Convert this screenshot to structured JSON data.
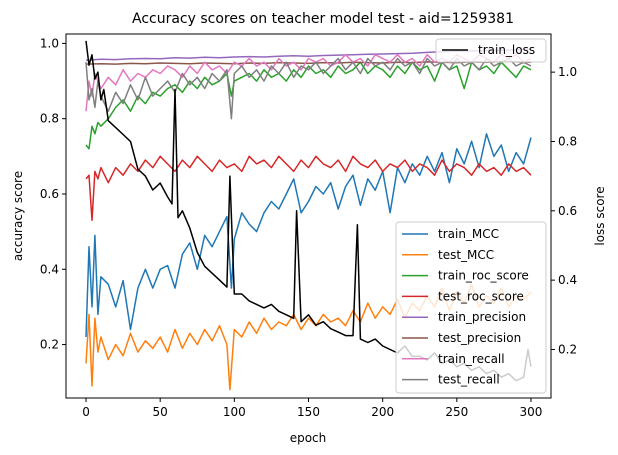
{
  "chart_data": {
    "type": "line",
    "title": "Accuracy scores on teacher model test - aid=1259381",
    "xlabel": "epoch",
    "ylabel": "accuracy score",
    "y2label": "loss score",
    "xlim": [
      -13.5,
      313.5
    ],
    "ylim": [
      0.058,
      1.025
    ],
    "y2lim": [
      0.06,
      1.11
    ],
    "xticks": [
      0,
      50,
      100,
      150,
      200,
      250,
      300
    ],
    "yticks": [
      0.2,
      0.4,
      0.6,
      0.8,
      1.0
    ],
    "y2ticks": [
      0.2,
      0.4,
      0.6,
      0.8,
      1.0
    ],
    "grid": false,
    "legend_left": "lower right",
    "legend_right": "upper right",
    "series": [
      {
        "name": "train_MCC",
        "color": "#1f77b4",
        "axis": "left",
        "x": [
          0,
          2,
          4,
          6,
          8,
          10,
          15,
          20,
          25,
          30,
          35,
          40,
          45,
          50,
          55,
          60,
          65,
          70,
          75,
          80,
          85,
          90,
          95,
          98,
          100,
          105,
          110,
          115,
          120,
          125,
          130,
          135,
          140,
          145,
          150,
          155,
          160,
          165,
          170,
          175,
          180,
          185,
          190,
          195,
          200,
          205,
          210,
          215,
          220,
          225,
          230,
          235,
          240,
          245,
          250,
          255,
          260,
          265,
          270,
          275,
          280,
          285,
          290,
          295,
          300
        ],
        "y": [
          0.22,
          0.46,
          0.3,
          0.49,
          0.28,
          0.38,
          0.36,
          0.3,
          0.37,
          0.24,
          0.35,
          0.4,
          0.35,
          0.4,
          0.41,
          0.35,
          0.44,
          0.47,
          0.4,
          0.49,
          0.46,
          0.5,
          0.54,
          0.35,
          0.48,
          0.55,
          0.52,
          0.5,
          0.55,
          0.58,
          0.56,
          0.6,
          0.64,
          0.55,
          0.58,
          0.62,
          0.6,
          0.63,
          0.56,
          0.62,
          0.65,
          0.57,
          0.64,
          0.61,
          0.66,
          0.55,
          0.67,
          0.63,
          0.68,
          0.65,
          0.7,
          0.66,
          0.71,
          0.63,
          0.72,
          0.68,
          0.74,
          0.67,
          0.76,
          0.7,
          0.73,
          0.66,
          0.71,
          0.68,
          0.75
        ]
      },
      {
        "name": "test_MCC",
        "color": "#ff7f0e",
        "axis": "left",
        "x": [
          0,
          2,
          4,
          6,
          8,
          10,
          15,
          20,
          25,
          30,
          35,
          40,
          45,
          50,
          55,
          60,
          65,
          70,
          75,
          80,
          85,
          90,
          95,
          97,
          100,
          105,
          110,
          115,
          120,
          125,
          130,
          135,
          140,
          145,
          150,
          155,
          160,
          165,
          170,
          175,
          180,
          185,
          190,
          195,
          200,
          205,
          210,
          215,
          220,
          225,
          230,
          235,
          240,
          245,
          250,
          255,
          260,
          265,
          270,
          275,
          280,
          285,
          290,
          295,
          300
        ],
        "y": [
          0.15,
          0.28,
          0.09,
          0.27,
          0.18,
          0.22,
          0.16,
          0.2,
          0.17,
          0.23,
          0.18,
          0.21,
          0.19,
          0.22,
          0.18,
          0.24,
          0.19,
          0.23,
          0.2,
          0.24,
          0.21,
          0.25,
          0.2,
          0.08,
          0.24,
          0.22,
          0.26,
          0.23,
          0.27,
          0.24,
          0.26,
          0.25,
          0.28,
          0.24,
          0.27,
          0.25,
          0.28,
          0.26,
          0.27,
          0.25,
          0.29,
          0.26,
          0.31,
          0.27,
          0.3,
          0.28,
          0.32,
          0.27,
          0.31,
          0.29,
          0.33,
          0.3,
          0.35,
          0.29,
          0.34,
          0.31,
          0.36,
          0.3,
          0.33,
          0.31,
          0.35,
          0.3,
          0.33,
          0.32,
          0.34
        ]
      },
      {
        "name": "train_roc_score",
        "color": "#2ca02c",
        "axis": "left",
        "x": [
          0,
          2,
          4,
          6,
          8,
          10,
          15,
          20,
          25,
          30,
          35,
          40,
          45,
          50,
          55,
          60,
          65,
          70,
          75,
          80,
          85,
          90,
          95,
          98,
          100,
          105,
          110,
          115,
          120,
          125,
          130,
          135,
          140,
          145,
          150,
          155,
          160,
          165,
          170,
          175,
          180,
          185,
          190,
          195,
          200,
          205,
          210,
          215,
          220,
          225,
          230,
          235,
          240,
          245,
          250,
          255,
          260,
          265,
          270,
          275,
          280,
          285,
          290,
          295,
          300
        ],
        "y": [
          0.73,
          0.72,
          0.78,
          0.76,
          0.79,
          0.78,
          0.8,
          0.83,
          0.85,
          0.82,
          0.86,
          0.84,
          0.87,
          0.86,
          0.88,
          0.89,
          0.87,
          0.9,
          0.88,
          0.91,
          0.89,
          0.9,
          0.92,
          0.86,
          0.9,
          0.91,
          0.92,
          0.9,
          0.93,
          0.91,
          0.92,
          0.9,
          0.93,
          0.91,
          0.94,
          0.92,
          0.93,
          0.91,
          0.94,
          0.92,
          0.93,
          0.95,
          0.92,
          0.94,
          0.93,
          0.91,
          0.94,
          0.92,
          0.95,
          0.93,
          0.94,
          0.9,
          0.95,
          0.93,
          0.94,
          0.88,
          0.95,
          0.93,
          0.94,
          0.92,
          0.95,
          0.93,
          0.91,
          0.94,
          0.93
        ]
      },
      {
        "name": "test_roc_score",
        "color": "#d62728",
        "axis": "left",
        "x": [
          0,
          2,
          4,
          6,
          8,
          10,
          15,
          20,
          25,
          30,
          35,
          40,
          45,
          50,
          55,
          60,
          65,
          70,
          75,
          80,
          85,
          90,
          95,
          100,
          105,
          110,
          115,
          120,
          125,
          130,
          135,
          140,
          145,
          150,
          155,
          160,
          165,
          170,
          175,
          180,
          185,
          190,
          195,
          200,
          205,
          210,
          215,
          220,
          225,
          230,
          235,
          240,
          245,
          250,
          255,
          260,
          265,
          270,
          275,
          280,
          285,
          290,
          295,
          300
        ],
        "y": [
          0.64,
          0.65,
          0.53,
          0.66,
          0.64,
          0.67,
          0.63,
          0.67,
          0.65,
          0.68,
          0.66,
          0.69,
          0.67,
          0.7,
          0.68,
          0.66,
          0.69,
          0.67,
          0.7,
          0.68,
          0.66,
          0.69,
          0.67,
          0.68,
          0.66,
          0.7,
          0.68,
          0.69,
          0.67,
          0.7,
          0.68,
          0.66,
          0.69,
          0.67,
          0.7,
          0.68,
          0.67,
          0.69,
          0.66,
          0.7,
          0.68,
          0.67,
          0.69,
          0.66,
          0.68,
          0.67,
          0.69,
          0.66,
          0.68,
          0.67,
          0.65,
          0.69,
          0.66,
          0.68,
          0.67,
          0.65,
          0.68,
          0.66,
          0.67,
          0.65,
          0.68,
          0.66,
          0.67,
          0.65
        ]
      },
      {
        "name": "train_precision",
        "color": "#9467bd",
        "axis": "left",
        "x": [
          0,
          10,
          20,
          30,
          40,
          50,
          60,
          70,
          80,
          90,
          100,
          110,
          120,
          130,
          140,
          150,
          160,
          170,
          180,
          190,
          200,
          210,
          220,
          230,
          240,
          250,
          260,
          270,
          280,
          290,
          300
        ],
        "y": [
          0.955,
          0.958,
          0.957,
          0.959,
          0.96,
          0.959,
          0.962,
          0.961,
          0.963,
          0.962,
          0.964,
          0.965,
          0.964,
          0.966,
          0.967,
          0.966,
          0.968,
          0.969,
          0.97,
          0.971,
          0.972,
          0.973,
          0.974,
          0.976,
          0.978,
          0.979,
          0.98,
          0.981,
          0.982,
          0.983,
          0.984
        ]
      },
      {
        "name": "test_precision",
        "color": "#8c564b",
        "axis": "left",
        "x": [
          0,
          10,
          20,
          30,
          40,
          50,
          60,
          70,
          80,
          90,
          100,
          110,
          120,
          130,
          140,
          150,
          160,
          170,
          180,
          190,
          200,
          210,
          220,
          230,
          240,
          250,
          260,
          270,
          280,
          290,
          300
        ],
        "y": [
          0.945,
          0.946,
          0.945,
          0.947,
          0.946,
          0.948,
          0.947,
          0.946,
          0.948,
          0.947,
          0.946,
          0.948,
          0.947,
          0.949,
          0.948,
          0.947,
          0.949,
          0.948,
          0.95,
          0.949,
          0.948,
          0.95,
          0.949,
          0.951,
          0.95,
          0.949,
          0.951,
          0.95,
          0.952,
          0.951,
          0.95
        ]
      },
      {
        "name": "train_recall",
        "color": "#e377c2",
        "axis": "left",
        "x": [
          0,
          2,
          4,
          6,
          10,
          15,
          20,
          25,
          30,
          35,
          40,
          45,
          50,
          55,
          60,
          65,
          70,
          75,
          80,
          85,
          90,
          95,
          100,
          105,
          110,
          115,
          120,
          125,
          130,
          135,
          140,
          145,
          150,
          155,
          160,
          165,
          170,
          175,
          180,
          185,
          190,
          195,
          200,
          205,
          210,
          215,
          220,
          225,
          230,
          235,
          240,
          245,
          250,
          255,
          260,
          265,
          270,
          275,
          280,
          285,
          290,
          295,
          300
        ],
        "y": [
          0.82,
          0.9,
          0.86,
          0.92,
          0.88,
          0.91,
          0.89,
          0.93,
          0.9,
          0.92,
          0.91,
          0.93,
          0.92,
          0.94,
          0.93,
          0.91,
          0.94,
          0.92,
          0.95,
          0.93,
          0.94,
          0.92,
          0.95,
          0.94,
          0.96,
          0.94,
          0.95,
          0.93,
          0.96,
          0.94,
          0.95,
          0.93,
          0.96,
          0.95,
          0.96,
          0.94,
          0.95,
          0.97,
          0.95,
          0.96,
          0.94,
          0.97,
          0.96,
          0.95,
          0.97,
          0.95,
          0.96,
          0.94,
          0.97,
          0.95,
          0.96,
          0.95,
          0.97,
          0.96,
          0.95,
          0.97,
          0.96,
          0.95,
          0.97,
          0.96,
          0.97,
          0.95,
          0.96
        ]
      },
      {
        "name": "test_recall",
        "color": "#7f7f7f",
        "axis": "left",
        "x": [
          0,
          2,
          4,
          6,
          8,
          10,
          15,
          20,
          25,
          30,
          35,
          40,
          45,
          50,
          55,
          60,
          65,
          70,
          75,
          80,
          85,
          90,
          95,
          98,
          100,
          105,
          110,
          115,
          120,
          125,
          130,
          135,
          140,
          145,
          150,
          155,
          160,
          165,
          170,
          175,
          180,
          185,
          190,
          195,
          200,
          205,
          210,
          215,
          220,
          225,
          230,
          235,
          240,
          245,
          250,
          255,
          260,
          265,
          270,
          275,
          280,
          285,
          290,
          295,
          300
        ],
        "y": [
          0.95,
          0.85,
          0.88,
          0.83,
          0.9,
          0.86,
          0.82,
          0.87,
          0.84,
          0.89,
          0.85,
          0.91,
          0.86,
          0.88,
          0.9,
          0.87,
          0.92,
          0.89,
          0.91,
          0.88,
          0.92,
          0.9,
          0.93,
          0.8,
          0.92,
          0.94,
          0.91,
          0.93,
          0.9,
          0.94,
          0.92,
          0.95,
          0.91,
          0.94,
          0.93,
          0.95,
          0.92,
          0.94,
          0.96,
          0.93,
          0.95,
          0.92,
          0.96,
          0.94,
          0.95,
          0.93,
          0.96,
          0.94,
          0.95,
          0.92,
          0.96,
          0.94,
          0.95,
          0.93,
          0.96,
          0.94,
          0.95,
          0.93,
          0.96,
          0.94,
          0.95,
          0.96,
          0.94,
          0.95,
          0.94
        ]
      },
      {
        "name": "train_loss",
        "color": "#000000",
        "axis": "right",
        "x": [
          0,
          2,
          4,
          6,
          8,
          10,
          12,
          15,
          20,
          25,
          30,
          35,
          40,
          45,
          50,
          55,
          58,
          60,
          62,
          65,
          70,
          75,
          80,
          85,
          90,
          95,
          97,
          100,
          105,
          110,
          115,
          120,
          125,
          130,
          135,
          140,
          142,
          145,
          150,
          155,
          160,
          165,
          170,
          175,
          180,
          183,
          185,
          190,
          195,
          200,
          205,
          210,
          215,
          220,
          225,
          230,
          235,
          240,
          245,
          250,
          255,
          260,
          265,
          270,
          275,
          280,
          285,
          290,
          295,
          298,
          300
        ],
        "y": [
          1.09,
          1.02,
          1.05,
          0.98,
          1.0,
          0.92,
          0.95,
          0.86,
          0.84,
          0.82,
          0.8,
          0.72,
          0.7,
          0.66,
          0.68,
          0.64,
          0.62,
          0.95,
          0.58,
          0.6,
          0.55,
          0.48,
          0.44,
          0.42,
          0.4,
          0.38,
          0.7,
          0.36,
          0.36,
          0.34,
          0.33,
          0.32,
          0.33,
          0.31,
          0.3,
          0.29,
          0.6,
          0.28,
          0.3,
          0.27,
          0.28,
          0.26,
          0.25,
          0.24,
          0.24,
          0.56,
          0.23,
          0.22,
          0.23,
          0.21,
          0.2,
          0.19,
          0.21,
          0.18,
          0.18,
          0.17,
          0.19,
          0.16,
          0.17,
          0.15,
          0.16,
          0.14,
          0.15,
          0.13,
          0.14,
          0.12,
          0.13,
          0.11,
          0.12,
          0.2,
          0.15
        ]
      }
    ]
  }
}
